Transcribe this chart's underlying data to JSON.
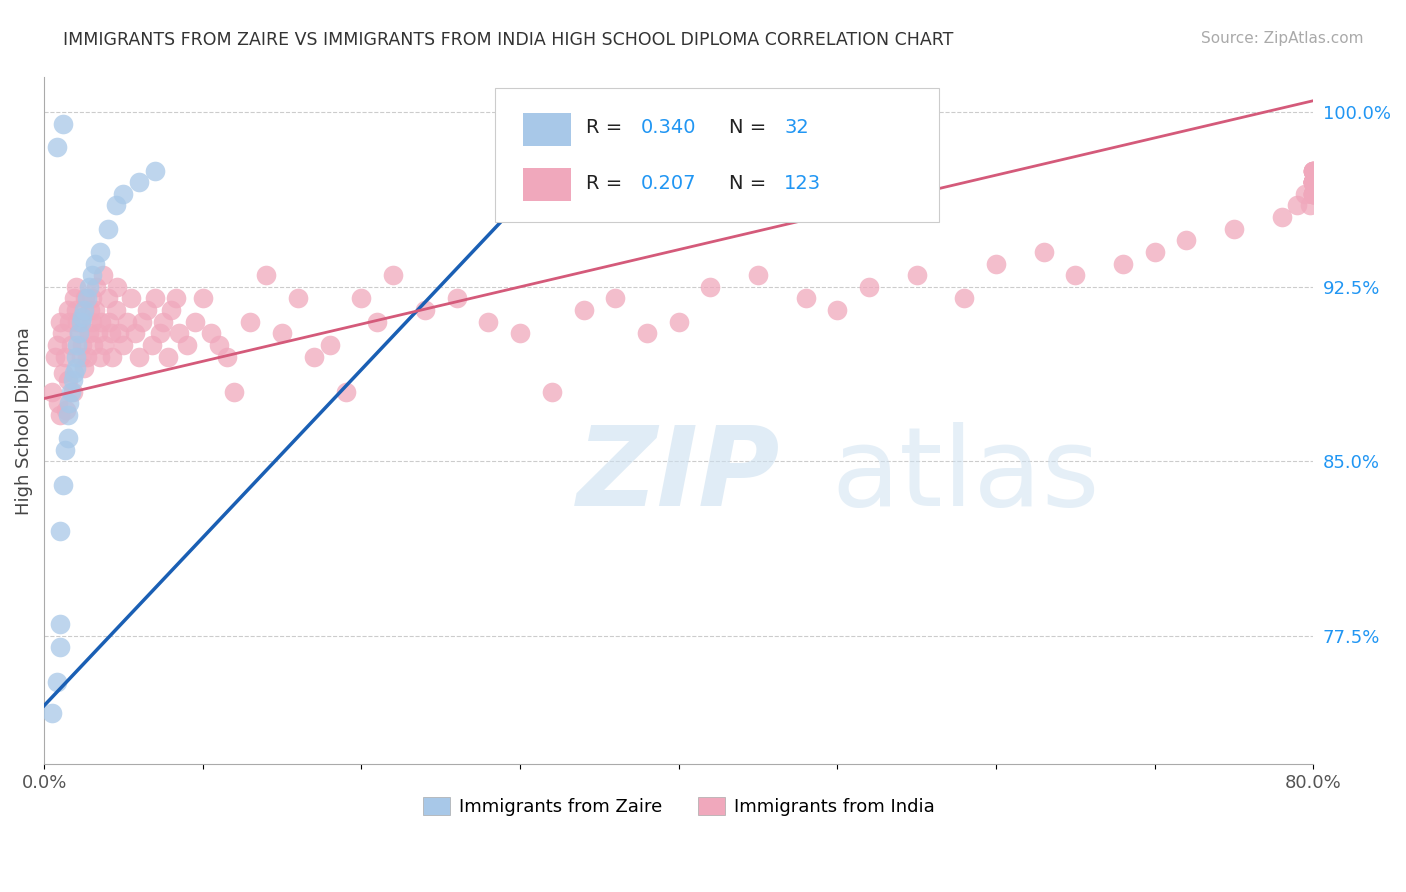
{
  "title": "IMMIGRANTS FROM ZAIRE VS IMMIGRANTS FROM INDIA HIGH SCHOOL DIPLOMA CORRELATION CHART",
  "source": "Source: ZipAtlas.com",
  "ylabel": "High School Diploma",
  "xlim": [
    0.0,
    0.8
  ],
  "ylim": [
    0.72,
    1.015
  ],
  "yticks_right": [
    1.0,
    0.925,
    0.85,
    0.775
  ],
  "ytick_right_labels": [
    "100.0%",
    "92.5%",
    "85.0%",
    "77.5%"
  ],
  "blue_color": "#a8c8e8",
  "pink_color": "#f0a8bc",
  "blue_line_color": "#1a5fb4",
  "pink_line_color": "#d45a7a",
  "legend_label_blue": "Immigrants from Zaire",
  "legend_label_pink": "Immigrants from India",
  "zaire_x": [
    0.005,
    0.008,
    0.01,
    0.01,
    0.01,
    0.012,
    0.013,
    0.015,
    0.015,
    0.016,
    0.017,
    0.018,
    0.019,
    0.02,
    0.02,
    0.021,
    0.022,
    0.023,
    0.024,
    0.025,
    0.027,
    0.028,
    0.03,
    0.032,
    0.035,
    0.04,
    0.045,
    0.05,
    0.06,
    0.07,
    0.008,
    0.012
  ],
  "zaire_y": [
    0.742,
    0.755,
    0.77,
    0.78,
    0.82,
    0.84,
    0.855,
    0.86,
    0.87,
    0.875,
    0.88,
    0.885,
    0.888,
    0.89,
    0.895,
    0.9,
    0.905,
    0.91,
    0.912,
    0.915,
    0.92,
    0.925,
    0.93,
    0.935,
    0.94,
    0.95,
    0.96,
    0.965,
    0.97,
    0.975,
    0.985,
    0.995
  ],
  "india_x": [
    0.005,
    0.007,
    0.008,
    0.009,
    0.01,
    0.01,
    0.011,
    0.012,
    0.013,
    0.014,
    0.015,
    0.015,
    0.016,
    0.017,
    0.018,
    0.019,
    0.02,
    0.02,
    0.021,
    0.022,
    0.023,
    0.024,
    0.025,
    0.026,
    0.027,
    0.028,
    0.029,
    0.03,
    0.03,
    0.031,
    0.032,
    0.033,
    0.034,
    0.035,
    0.036,
    0.037,
    0.038,
    0.04,
    0.041,
    0.042,
    0.043,
    0.045,
    0.046,
    0.047,
    0.05,
    0.052,
    0.055,
    0.057,
    0.06,
    0.062,
    0.065,
    0.068,
    0.07,
    0.073,
    0.075,
    0.078,
    0.08,
    0.083,
    0.085,
    0.09,
    0.095,
    0.1,
    0.105,
    0.11,
    0.115,
    0.12,
    0.13,
    0.14,
    0.15,
    0.16,
    0.17,
    0.18,
    0.19,
    0.2,
    0.21,
    0.22,
    0.24,
    0.26,
    0.28,
    0.3,
    0.32,
    0.34,
    0.36,
    0.38,
    0.4,
    0.42,
    0.45,
    0.48,
    0.5,
    0.52,
    0.55,
    0.58,
    0.6,
    0.63,
    0.65,
    0.68,
    0.7,
    0.72,
    0.75,
    0.78,
    0.79,
    0.795,
    0.798,
    0.8,
    0.8,
    0.8,
    0.8,
    0.8,
    0.8,
    0.8,
    0.8,
    0.8,
    0.8,
    0.8,
    0.8,
    0.8,
    0.8,
    0.8,
    0.8,
    0.8,
    0.8,
    0.8,
    0.8
  ],
  "india_y": [
    0.88,
    0.895,
    0.9,
    0.875,
    0.91,
    0.87,
    0.905,
    0.888,
    0.895,
    0.872,
    0.915,
    0.885,
    0.91,
    0.9,
    0.88,
    0.92,
    0.915,
    0.925,
    0.91,
    0.905,
    0.895,
    0.9,
    0.89,
    0.92,
    0.895,
    0.905,
    0.915,
    0.91,
    0.92,
    0.9,
    0.915,
    0.925,
    0.905,
    0.895,
    0.91,
    0.93,
    0.9,
    0.92,
    0.91,
    0.905,
    0.895,
    0.915,
    0.925,
    0.905,
    0.9,
    0.91,
    0.92,
    0.905,
    0.895,
    0.91,
    0.915,
    0.9,
    0.92,
    0.905,
    0.91,
    0.895,
    0.915,
    0.92,
    0.905,
    0.9,
    0.91,
    0.92,
    0.905,
    0.9,
    0.895,
    0.88,
    0.91,
    0.93,
    0.905,
    0.92,
    0.895,
    0.9,
    0.88,
    0.92,
    0.91,
    0.93,
    0.915,
    0.92,
    0.91,
    0.905,
    0.88,
    0.915,
    0.92,
    0.905,
    0.91,
    0.925,
    0.93,
    0.92,
    0.915,
    0.925,
    0.93,
    0.92,
    0.935,
    0.94,
    0.93,
    0.935,
    0.94,
    0.945,
    0.95,
    0.955,
    0.96,
    0.965,
    0.96,
    0.97,
    0.965,
    0.97,
    0.965,
    0.97,
    0.965,
    0.97,
    0.975,
    0.97,
    0.965,
    0.97,
    0.975,
    0.97,
    0.965,
    0.97,
    0.975,
    0.97,
    0.975,
    0.97,
    0.975
  ],
  "blue_line_x0": 0.0,
  "blue_line_y0": 0.745,
  "blue_line_x1": 0.36,
  "blue_line_y1": 1.005,
  "pink_line_x0": 0.0,
  "pink_line_y0": 0.877,
  "pink_line_x1": 0.8,
  "pink_line_y1": 1.005
}
